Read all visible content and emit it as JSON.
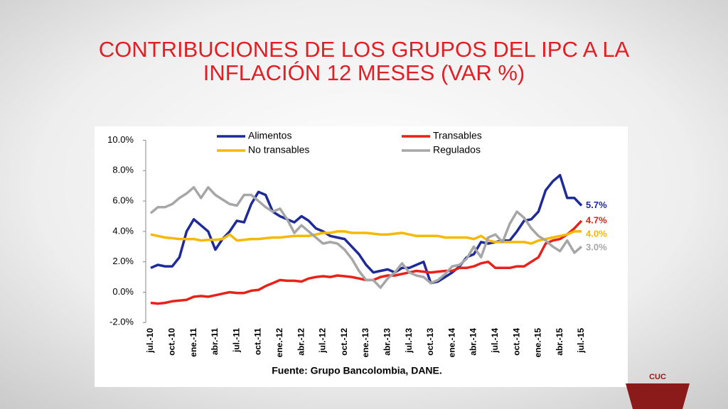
{
  "chart_data": {
    "type": "line",
    "title": [
      "CONTRIBUCIONES DE LOS GRUPOS DEL IPC A LA",
      "INFLACIÓN 12 MESES (VAR %)"
    ],
    "source": "Fuente: Grupo Bancolombia, DANE.",
    "logo_text": "CUC",
    "categories": [
      "jul.-10",
      null,
      null,
      "oct.-10",
      null,
      null,
      "ene.-11",
      null,
      null,
      "abr.-11",
      null,
      null,
      "jul.-11",
      null,
      null,
      "oct.-11",
      null,
      null,
      "ene.-12",
      null,
      null,
      "abr.-12",
      null,
      null,
      "jul.-12",
      null,
      null,
      "oct.-12",
      null,
      null,
      "ene.-13",
      null,
      null,
      "abr.-13",
      null,
      null,
      "jul.-13",
      null,
      null,
      "oct.-13",
      null,
      null,
      "ene.-14",
      null,
      null,
      "abr.-14",
      null,
      null,
      "jul.-14",
      null,
      null,
      "oct.-14",
      null,
      null,
      "ene.-15",
      null,
      null,
      "abr.-15",
      null,
      null,
      "jul.-15"
    ],
    "series": [
      {
        "name": "Alimentos",
        "color": "#1f2a99",
        "values": [
          1.6,
          1.8,
          1.7,
          1.7,
          2.3,
          4.0,
          4.8,
          4.4,
          4.0,
          2.8,
          3.5,
          4.0,
          4.7,
          4.6,
          5.8,
          6.6,
          6.4,
          5.3,
          5.0,
          4.8,
          4.6,
          5.0,
          4.7,
          4.2,
          4.0,
          3.7,
          3.6,
          3.5,
          3.0,
          2.5,
          1.8,
          1.3,
          1.4,
          1.5,
          1.3,
          1.6,
          1.6,
          1.8,
          2.0,
          0.6,
          0.7,
          1.0,
          1.3,
          1.7,
          2.3,
          2.5,
          3.3,
          3.2,
          3.3,
          3.4,
          3.4,
          4.0,
          4.7,
          4.8,
          5.3,
          6.7,
          7.3,
          7.7,
          6.2,
          6.2,
          5.7
        ],
        "value_labels": [
          null,
          null,
          null,
          null,
          null,
          null,
          null,
          null,
          null,
          null,
          null,
          null,
          null,
          null,
          null,
          null,
          null,
          null,
          null,
          null,
          null,
          null,
          null,
          null,
          null,
          null,
          null,
          null,
          null,
          null,
          null,
          null,
          null,
          null,
          null,
          null,
          null,
          null,
          null,
          null,
          null,
          null,
          null,
          null,
          null,
          null,
          null,
          null,
          null,
          null,
          null,
          null,
          null,
          null,
          null,
          null,
          null,
          null,
          null,
          null,
          "5.7%"
        ]
      },
      {
        "name": "Transables",
        "color": "#e8211b",
        "values": [
          -0.7,
          -0.75,
          -0.7,
          -0.6,
          -0.55,
          -0.5,
          -0.3,
          -0.25,
          -0.3,
          -0.2,
          -0.1,
          0.0,
          -0.05,
          -0.05,
          0.1,
          0.15,
          0.4,
          0.6,
          0.8,
          0.75,
          0.75,
          0.7,
          0.9,
          1.0,
          1.05,
          1.0,
          1.1,
          1.05,
          1.0,
          0.9,
          0.8,
          0.8,
          1.0,
          1.1,
          1.1,
          1.2,
          1.3,
          1.4,
          1.35,
          1.3,
          1.35,
          1.4,
          1.4,
          1.6,
          1.6,
          1.7,
          1.9,
          2.0,
          1.6,
          1.6,
          1.6,
          1.7,
          1.7,
          2.0,
          2.3,
          3.2,
          3.4,
          3.5,
          3.8,
          4.2,
          4.7
        ],
        "value_labels": [
          null,
          null,
          null,
          null,
          null,
          null,
          null,
          null,
          null,
          null,
          null,
          null,
          null,
          null,
          null,
          null,
          null,
          null,
          null,
          null,
          null,
          null,
          null,
          null,
          null,
          null,
          null,
          null,
          null,
          null,
          null,
          null,
          null,
          null,
          null,
          null,
          null,
          null,
          null,
          null,
          null,
          null,
          null,
          null,
          null,
          null,
          null,
          null,
          null,
          null,
          null,
          null,
          null,
          null,
          null,
          null,
          null,
          null,
          null,
          null,
          "4.7%"
        ]
      },
      {
        "name": "No transables",
        "color": "#f6b800",
        "values": [
          3.8,
          3.7,
          3.6,
          3.55,
          3.5,
          3.5,
          3.5,
          3.4,
          3.45,
          3.45,
          3.5,
          3.8,
          3.4,
          3.45,
          3.5,
          3.5,
          3.55,
          3.6,
          3.6,
          3.65,
          3.7,
          3.7,
          3.7,
          3.8,
          3.9,
          3.9,
          4.0,
          4.0,
          3.9,
          3.9,
          3.9,
          3.85,
          3.8,
          3.8,
          3.85,
          3.9,
          3.8,
          3.7,
          3.7,
          3.7,
          3.7,
          3.6,
          3.6,
          3.6,
          3.6,
          3.5,
          3.7,
          3.4,
          3.3,
          3.3,
          3.3,
          3.3,
          3.3,
          3.2,
          3.4,
          3.5,
          3.6,
          3.7,
          3.8,
          4.0,
          4.0
        ],
        "value_labels": [
          null,
          null,
          null,
          null,
          null,
          null,
          null,
          null,
          null,
          null,
          null,
          null,
          null,
          null,
          null,
          null,
          null,
          null,
          null,
          null,
          null,
          null,
          null,
          null,
          null,
          null,
          null,
          null,
          null,
          null,
          null,
          null,
          null,
          null,
          null,
          null,
          null,
          null,
          null,
          null,
          null,
          null,
          null,
          null,
          null,
          null,
          null,
          null,
          null,
          null,
          null,
          null,
          null,
          null,
          null,
          null,
          null,
          null,
          null,
          null,
          "4.0%"
        ]
      },
      {
        "name": "Regulados",
        "color": "#a6a6a6",
        "values": [
          5.2,
          5.6,
          5.6,
          5.8,
          6.2,
          6.5,
          6.9,
          6.2,
          6.9,
          6.4,
          6.1,
          5.8,
          5.7,
          6.4,
          6.4,
          6.0,
          5.6,
          5.3,
          5.5,
          4.8,
          3.9,
          4.4,
          4.0,
          3.6,
          3.2,
          3.3,
          3.2,
          2.8,
          2.2,
          1.4,
          0.8,
          0.8,
          0.3,
          0.9,
          1.3,
          1.9,
          1.3,
          1.1,
          1.0,
          0.6,
          0.8,
          1.2,
          1.7,
          1.8,
          2.2,
          3.0,
          2.3,
          3.6,
          3.8,
          3.3,
          4.5,
          5.3,
          4.9,
          4.2,
          3.7,
          3.4,
          3.0,
          2.7,
          3.4,
          2.6,
          3.0
        ],
        "value_labels": [
          null,
          null,
          null,
          null,
          null,
          null,
          null,
          null,
          null,
          null,
          null,
          null,
          null,
          null,
          null,
          null,
          null,
          null,
          null,
          null,
          null,
          null,
          null,
          null,
          null,
          null,
          null,
          null,
          null,
          null,
          null,
          null,
          null,
          null,
          null,
          null,
          null,
          null,
          null,
          null,
          null,
          null,
          null,
          null,
          null,
          null,
          null,
          null,
          null,
          null,
          null,
          null,
          null,
          null,
          null,
          null,
          null,
          null,
          null,
          null,
          "3.0%"
        ]
      }
    ],
    "ylim": [
      -2,
      10
    ],
    "yticks": [
      {
        "value": -2,
        "label": "-2.0%"
      },
      {
        "value": 0,
        "label": "0.0%"
      },
      {
        "value": 2,
        "label": "2.0%"
      },
      {
        "value": 4,
        "label": "4.0%"
      },
      {
        "value": 6,
        "label": "6.0%"
      },
      {
        "value": 8,
        "label": "8.0%"
      },
      {
        "value": 10,
        "label": "10.0%"
      }
    ],
    "grid": false,
    "legend": "top"
  }
}
